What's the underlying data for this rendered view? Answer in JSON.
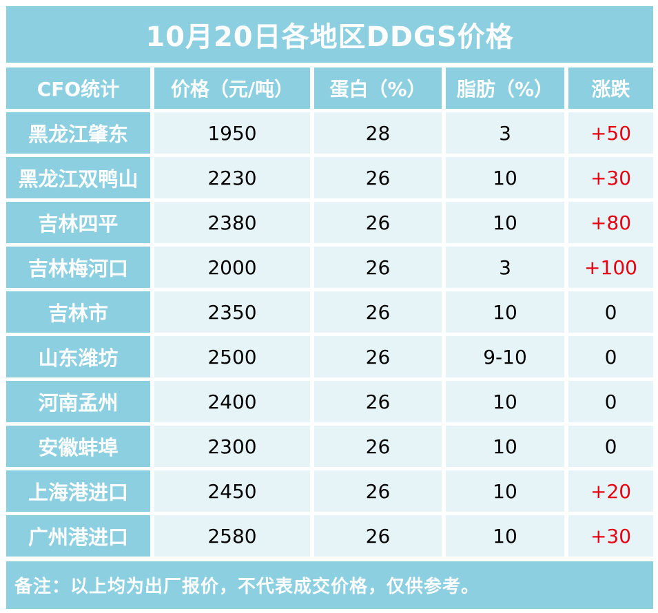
{
  "title": "10月20日各地区DDGS价格",
  "headers": [
    "CFO统计",
    "价格（元/吨）",
    "蛋白（%）",
    "脂肪（%）",
    "涨跌"
  ],
  "rows": [
    {
      "region": "黑龙江肇东",
      "price": "1950",
      "protein": "28",
      "fat": "3",
      "change": "+50"
    },
    {
      "region": "黑龙江双鸭山",
      "price": "2230",
      "protein": "26",
      "fat": "10",
      "change": "+30"
    },
    {
      "region": "吉林四平",
      "price": "2380",
      "protein": "26",
      "fat": "10",
      "change": "+80"
    },
    {
      "region": "吉林梅河口",
      "price": "2000",
      "protein": "26",
      "fat": "3",
      "change": "+100"
    },
    {
      "region": "吉林市",
      "price": "2350",
      "protein": "26",
      "fat": "10",
      "change": "0"
    },
    {
      "region": "山东潍坊",
      "price": "2500",
      "protein": "26",
      "fat": "9-10",
      "change": "0"
    },
    {
      "region": "河南孟州",
      "price": "2400",
      "protein": "26",
      "fat": "10",
      "change": "0"
    },
    {
      "region": "安徽蚌埠",
      "price": "2300",
      "protein": "26",
      "fat": "10",
      "change": "0"
    },
    {
      "region": "上海港进口",
      "price": "2450",
      "protein": "26",
      "fat": "10",
      "change": "+20"
    },
    {
      "region": "广州港进口",
      "price": "2580",
      "protein": "26",
      "fat": "10",
      "change": "+30"
    }
  ],
  "note": "备注：以上均为出厂报价，不代表成交价格，仅供参考。",
  "colors": {
    "header_bg": "#8ccfe0",
    "cell_bg": "#e6f4f8",
    "rise": "#e60012"
  }
}
